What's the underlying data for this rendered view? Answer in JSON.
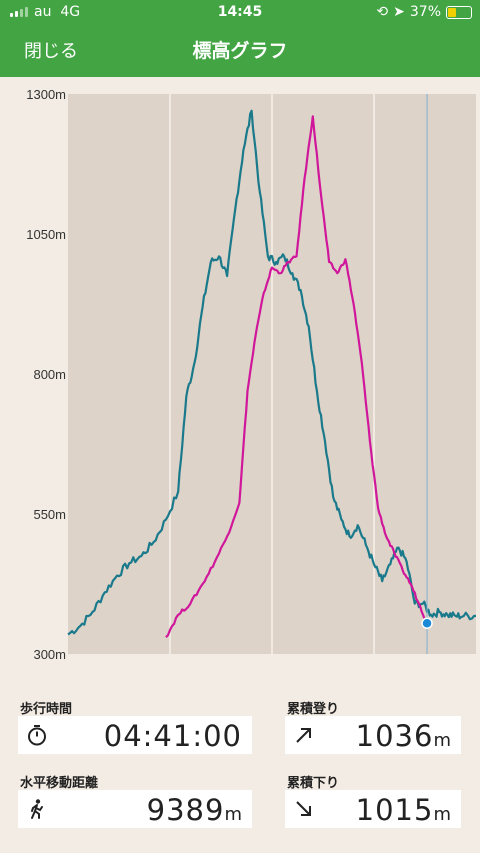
{
  "status_bar": {
    "carrier": "au",
    "network": "4G",
    "time": "14:45",
    "battery": "37%"
  },
  "header": {
    "close_label": "閉じる",
    "title": "標高グラフ"
  },
  "chart_data": {
    "type": "line",
    "y_ticks": [
      "1300m",
      "1050m",
      "800m",
      "550m",
      "300m"
    ],
    "ylim": [
      300,
      1300
    ],
    "grid": true,
    "colors": {
      "series_a": "#1a7a8c",
      "series_b": "#d0179b",
      "marker": "#1a8ad8",
      "plot_bg": "#ddd3c8"
    },
    "series": [
      {
        "color": "#1a7a8c",
        "x": [
          0,
          0.03,
          0.06,
          0.09,
          0.12,
          0.15,
          0.18,
          0.21,
          0.24,
          0.27,
          0.29,
          0.31,
          0.33,
          0.35,
          0.37,
          0.39,
          0.41,
          0.43,
          0.45,
          0.47,
          0.49,
          0.51,
          0.53,
          0.55,
          0.57,
          0.59,
          0.61,
          0.63,
          0.65,
          0.67,
          0.69,
          0.71,
          0.73,
          0.75,
          0.77,
          0.79,
          0.81,
          0.83,
          0.85,
          0.87,
          0.89,
          0.91,
          0.93,
          0.95,
          0.97,
          1.0
        ],
        "y": [
          335,
          350,
          375,
          410,
          440,
          462,
          475,
          500,
          540,
          590,
          760,
          820,
          920,
          1000,
          1010,
          975,
          1095,
          1200,
          1270,
          1125,
          1010,
          1000,
          1010,
          980,
          950,
          885,
          770,
          680,
          580,
          540,
          510,
          530,
          495,
          460,
          430,
          460,
          490,
          465,
          390,
          390,
          370,
          375,
          370,
          368,
          368,
          368
        ]
      },
      {
        "color": "#d0179b",
        "x": [
          0.24,
          0.27,
          0.3,
          0.33,
          0.36,
          0.39,
          0.42,
          0.44,
          0.46,
          0.48,
          0.5,
          0.52,
          0.54,
          0.56,
          0.58,
          0.6,
          0.62,
          0.64,
          0.66,
          0.68,
          0.7,
          0.72,
          0.74,
          0.76,
          0.78,
          0.8,
          0.82,
          0.84,
          0.86,
          0.88
        ],
        "y": [
          330,
          370,
          390,
          425,
          465,
          510,
          570,
          770,
          870,
          945,
          990,
          980,
          1000,
          1010,
          1150,
          1260,
          1120,
          1000,
          980,
          1005,
          925,
          820,
          680,
          560,
          510,
          480,
          450,
          425,
          390,
          355
        ]
      }
    ],
    "marker": {
      "x": 0.88,
      "y": 355
    }
  },
  "stats": {
    "walk_time_label": "歩行時間",
    "walk_time_value": "04:41:00",
    "ascent_label": "累積登り",
    "ascent_value": "1036",
    "ascent_unit": "m",
    "distance_label": "水平移動距離",
    "distance_value": "9389",
    "distance_unit": "m",
    "descent_label": "累積下り",
    "descent_value": "1015",
    "descent_unit": "m"
  }
}
